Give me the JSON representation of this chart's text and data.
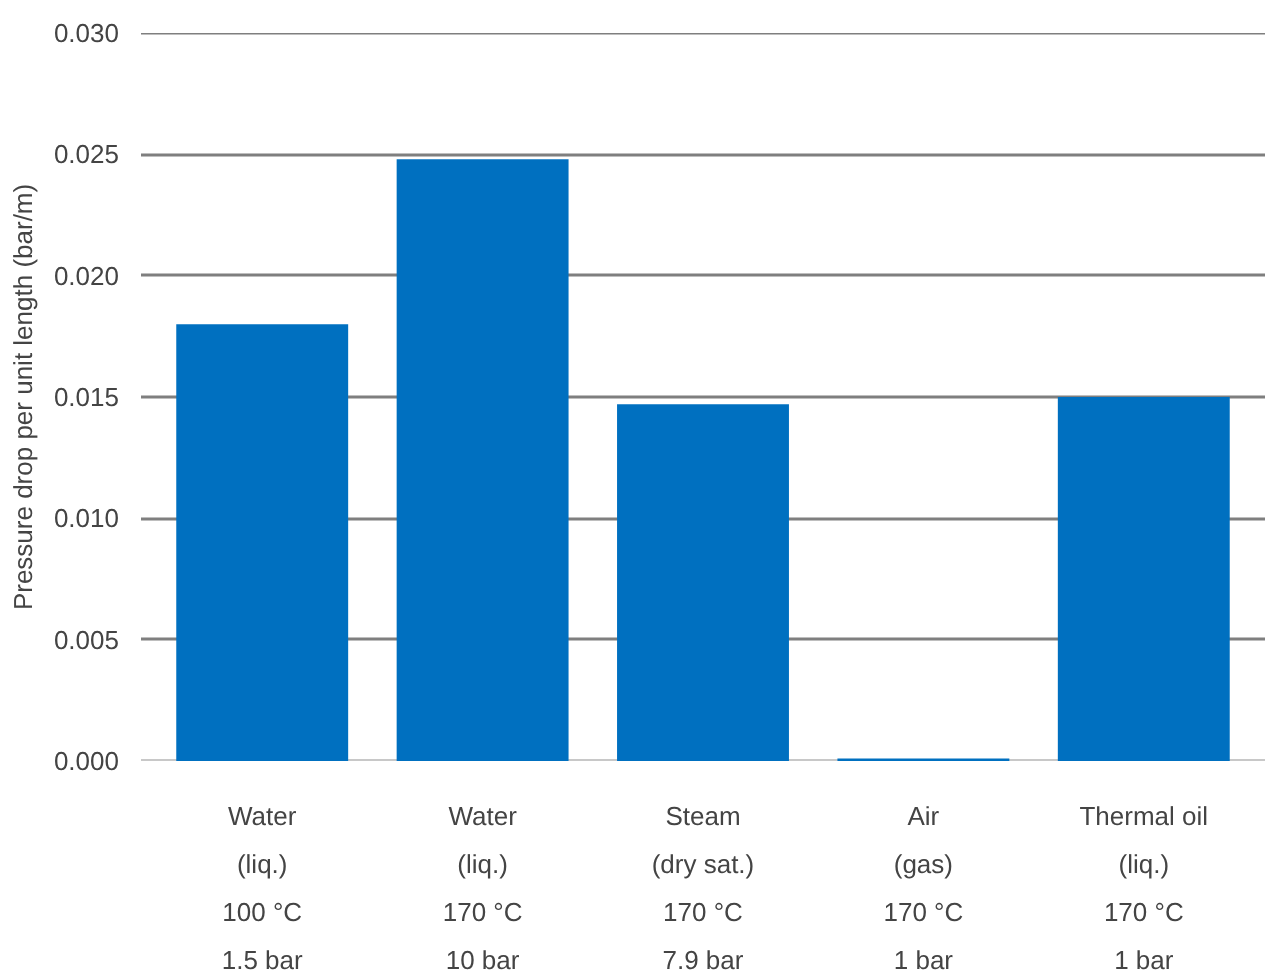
{
  "chart_data": {
    "type": "bar",
    "ylabel": "Pressure drop per unit length (bar/m)",
    "categories": [
      "Water\n(liq.)\n100 °C\n1.5 bar",
      "Water\n(liq.)\n170 °C\n10 bar",
      "Steam\n(dry sat.)\n170 °C\n7.9 bar",
      "Air\n(gas)\n170 °C\n1 bar",
      "Thermal oil\n(liq.)\n170 °C\n1 bar"
    ],
    "values": [
      0.018,
      0.0248,
      0.0147,
      0.0001,
      0.015
    ],
    "color": "#0070c0",
    "ylim": [
      0,
      0.03
    ],
    "yticks": [
      {
        "value": 0,
        "label": "0.000"
      },
      {
        "value": 0.005,
        "label": "0.005"
      },
      {
        "value": 0.01,
        "label": "0.010"
      },
      {
        "value": 0.015,
        "label": "0.015"
      },
      {
        "value": 0.02,
        "label": "0.020"
      },
      {
        "value": 0.025,
        "label": "0.025"
      },
      {
        "value": 0.03,
        "label": "0.030"
      }
    ],
    "grid": "y"
  }
}
